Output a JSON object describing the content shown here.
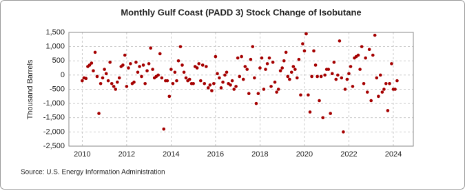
{
  "chart_data": {
    "type": "scatter",
    "title": "Monthly Gulf Coast (PADD 3) Stock Change of Isobutane",
    "y_label": "Thousand Barrels",
    "source": "Source: U.S. Energy Information Administration",
    "color": "#a50000",
    "grid": true,
    "xlim": [
      2009.4,
      2024.9
    ],
    "xticks": [
      2010,
      2012,
      2014,
      2016,
      2018,
      2020,
      2022,
      2024
    ],
    "ylim": [
      -2500,
      1500
    ],
    "yticks": [
      {
        "value": -2500,
        "label": "-2,500"
      },
      {
        "value": -2000,
        "label": "-2,000"
      },
      {
        "value": -1500,
        "label": "-1,500"
      },
      {
        "value": -1000,
        "label": "-1,000"
      },
      -500,
      0,
      500,
      {
        "value": 1000,
        "label": "1,000"
      },
      {
        "value": 1500,
        "label": "1,500"
      }
    ],
    "x": [
      2010.0,
      2010.08,
      2010.17,
      2010.25,
      2010.33,
      2010.42,
      2010.5,
      2010.58,
      2010.67,
      2010.75,
      2010.83,
      2010.92,
      2011.0,
      2011.08,
      2011.17,
      2011.25,
      2011.33,
      2011.42,
      2011.5,
      2011.58,
      2011.67,
      2011.75,
      2011.83,
      2011.92,
      2012.0,
      2012.08,
      2012.17,
      2012.25,
      2012.33,
      2012.42,
      2012.5,
      2012.58,
      2012.67,
      2012.75,
      2012.83,
      2012.92,
      2013.0,
      2013.08,
      2013.17,
      2013.25,
      2013.33,
      2013.42,
      2013.5,
      2013.58,
      2013.67,
      2013.75,
      2013.83,
      2013.92,
      2014.0,
      2014.08,
      2014.17,
      2014.25,
      2014.33,
      2014.42,
      2014.5,
      2014.58,
      2014.67,
      2014.75,
      2014.83,
      2014.92,
      2015.0,
      2015.08,
      2015.17,
      2015.25,
      2015.33,
      2015.42,
      2015.5,
      2015.58,
      2015.67,
      2015.75,
      2015.83,
      2015.92,
      2016.0,
      2016.08,
      2016.17,
      2016.25,
      2016.33,
      2016.42,
      2016.5,
      2016.58,
      2016.67,
      2016.75,
      2016.83,
      2016.92,
      2017.0,
      2017.08,
      2017.17,
      2017.25,
      2017.33,
      2017.42,
      2017.5,
      2017.58,
      2017.67,
      2017.75,
      2017.83,
      2017.92,
      2018.0,
      2018.08,
      2018.17,
      2018.25,
      2018.33,
      2018.42,
      2018.5,
      2018.58,
      2018.67,
      2018.75,
      2018.83,
      2018.92,
      2019.0,
      2019.08,
      2019.17,
      2019.25,
      2019.33,
      2019.42,
      2019.5,
      2019.58,
      2019.67,
      2019.75,
      2019.83,
      2019.92,
      2020.0,
      2020.08,
      2020.17,
      2020.25,
      2020.33,
      2020.42,
      2020.5,
      2020.58,
      2020.67,
      2020.75,
      2020.83,
      2020.92,
      2021.0,
      2021.08,
      2021.17,
      2021.25,
      2021.33,
      2021.42,
      2021.5,
      2021.58,
      2021.67,
      2021.75,
      2021.83,
      2021.92,
      2022.0,
      2022.08,
      2022.17,
      2022.25,
      2022.33,
      2022.42,
      2022.5,
      2022.58,
      2022.67,
      2022.75,
      2022.83,
      2022.92,
      2023.0,
      2023.08,
      2023.17,
      2023.25,
      2023.33,
      2023.42,
      2023.5,
      2023.58,
      2023.67,
      2023.75,
      2023.83,
      2023.92,
      2024.0,
      2024.08,
      2024.17
    ],
    "values": [
      -200,
      -100,
      -120,
      300,
      350,
      420,
      150,
      800,
      -50,
      -1350,
      -300,
      -100,
      200,
      50,
      -200,
      450,
      -300,
      -400,
      -500,
      -250,
      -100,
      300,
      350,
      700,
      -400,
      250,
      400,
      -300,
      -250,
      450,
      100,
      300,
      -50,
      350,
      -300,
      150,
      400,
      950,
      200,
      -100,
      -50,
      0,
      750,
      -100,
      -1900,
      -200,
      -200,
      -750,
      200,
      -300,
      100,
      -200,
      500,
      1000,
      350,
      100,
      -100,
      -200,
      -150,
      -300,
      -300,
      300,
      250,
      400,
      -200,
      350,
      -300,
      300,
      -450,
      -350,
      -550,
      -300,
      650,
      50,
      -100,
      -450,
      -250,
      0,
      100,
      -300,
      -350,
      -200,
      -500,
      -400,
      600,
      -50,
      650,
      -150,
      300,
      200,
      -650,
      550,
      1000,
      -100,
      -1000,
      -650,
      250,
      600,
      -500,
      200,
      400,
      600,
      -400,
      450,
      -250,
      -600,
      -500,
      150,
      250,
      500,
      800,
      -50,
      -150,
      100,
      300,
      200,
      -100,
      550,
      -700,
      1100,
      850,
      1450,
      -700,
      -1300,
      -50,
      850,
      350,
      -50,
      -900,
      -50,
      -1500,
      0,
      200,
      200,
      -1350,
      50,
      450,
      -150,
      0,
      1200,
      -100,
      -2000,
      -500,
      -150,
      50,
      300,
      -400,
      600,
      650,
      700,
      200,
      1000,
      -300,
      600,
      -600,
      900,
      -900,
      700,
      1400,
      -100,
      -750,
      0,
      -600,
      -500,
      -300,
      -1250,
      -300,
      400,
      -500,
      -500,
      -200
    ]
  }
}
